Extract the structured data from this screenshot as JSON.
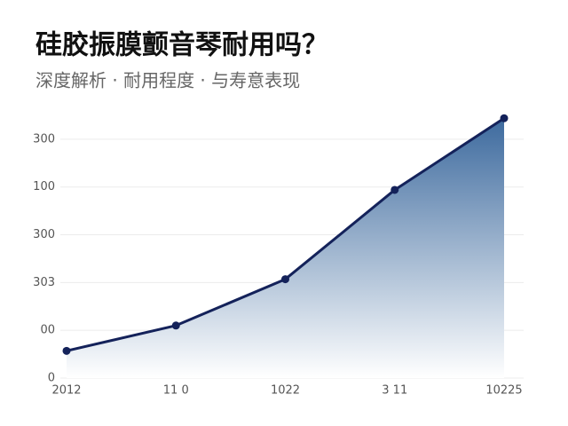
{
  "chart_data": {
    "type": "area",
    "title": "硅胶振膜颤音琴耐用吗？",
    "subtitle": "深度解析 · 耐用程度 · 与寿意表现",
    "categories": [
      "2012",
      "11 0",
      "1022",
      "3 11",
      "10225"
    ],
    "values": [
      0.57,
      1.1,
      2.07,
      3.94,
      5.44
    ],
    "color": "#14225a",
    "fill_top": "#3d6a9e",
    "ylim": [
      0,
      5.5
    ],
    "yticks": [
      0,
      {
        "value": 1,
        "label": "00"
      },
      {
        "value": 2,
        "label": "303"
      },
      {
        "value": 3,
        "label": "300"
      },
      {
        "value": 4,
        "label": "100"
      },
      {
        "value": 5,
        "label": "300"
      }
    ],
    "grid": true
  }
}
